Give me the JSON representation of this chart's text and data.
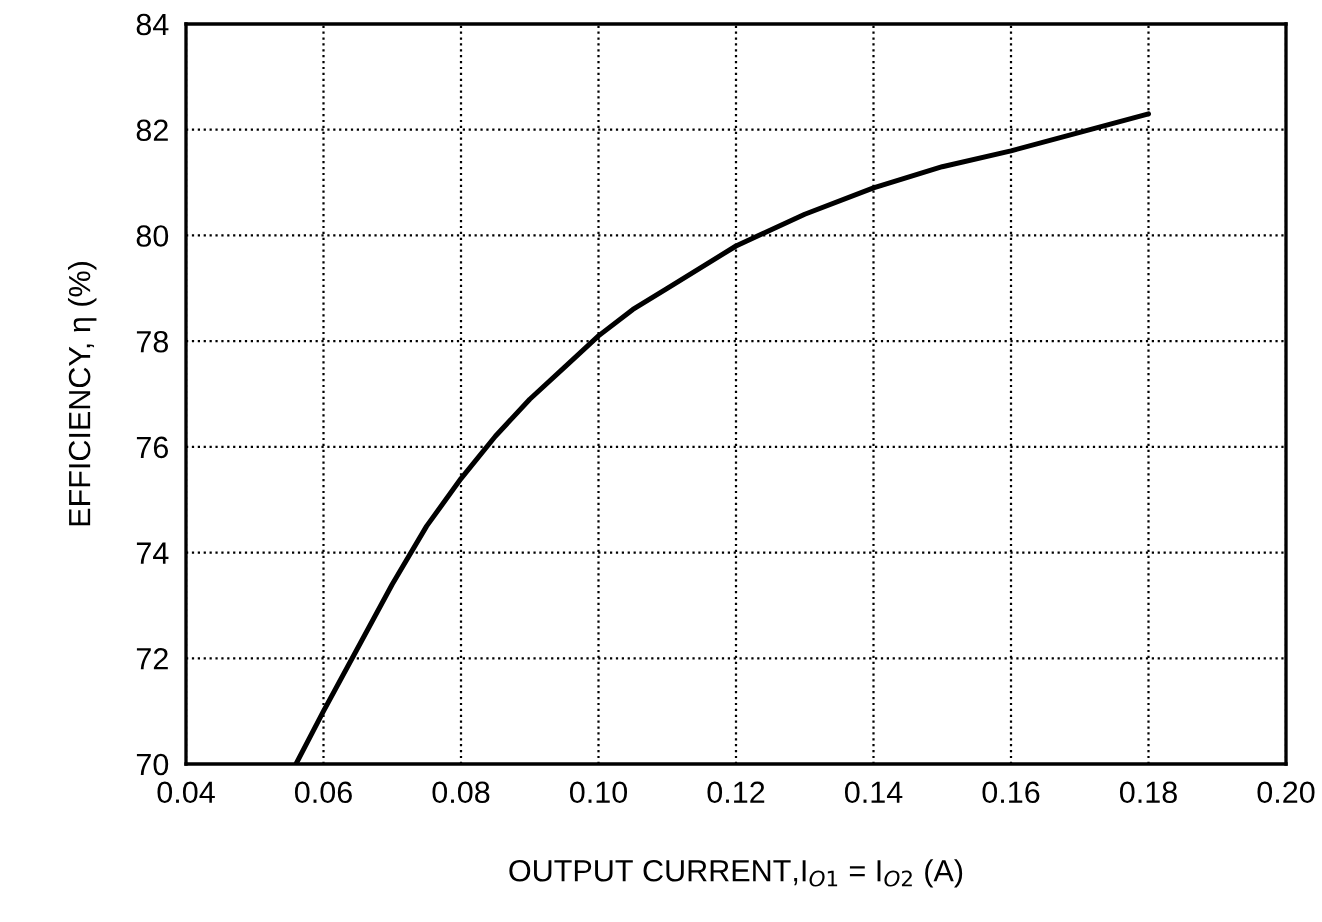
{
  "chart_data": {
    "type": "line",
    "xlabel": "OUTPUT CURRENT,I$_{O1}$ = I$_{O2}$ (A)",
    "ylabel": "EFFICIENCY, η (%)",
    "series": [
      {
        "color": "#000000",
        "x": [
          0.056,
          0.06,
          0.065,
          0.07,
          0.075,
          0.08,
          0.085,
          0.09,
          0.095,
          0.1,
          0.105,
          0.11,
          0.12,
          0.13,
          0.14,
          0.15,
          0.16,
          0.17,
          0.18
        ],
        "values": [
          70,
          71,
          72.2,
          73.4,
          74.5,
          75.4,
          76.2,
          76.9,
          77.5,
          78.1,
          78.6,
          79,
          79.8,
          80.4,
          80.9,
          81.3,
          81.6,
          81.95,
          82.3
        ]
      }
    ],
    "xlim": [
      0.04,
      0.2
    ],
    "ylim": [
      70,
      84
    ],
    "xticks": [
      {
        "value": 0.04,
        "label": "0.04"
      },
      {
        "value": 0.06,
        "label": "0.06"
      },
      {
        "value": 0.08,
        "label": "0.08"
      },
      {
        "value": 0.1,
        "label": "0.10"
      },
      {
        "value": 0.12,
        "label": "0.12"
      },
      {
        "value": 0.14,
        "label": "0.14"
      },
      {
        "value": 0.16,
        "label": "0.16"
      },
      {
        "value": 0.18,
        "label": "0.18"
      },
      {
        "value": 0.2,
        "label": "0.20"
      }
    ],
    "yticks": [
      70,
      72,
      74,
      76,
      78,
      80,
      82,
      84
    ],
    "grid": true,
    "line_style": "solid",
    "marker": "none"
  }
}
